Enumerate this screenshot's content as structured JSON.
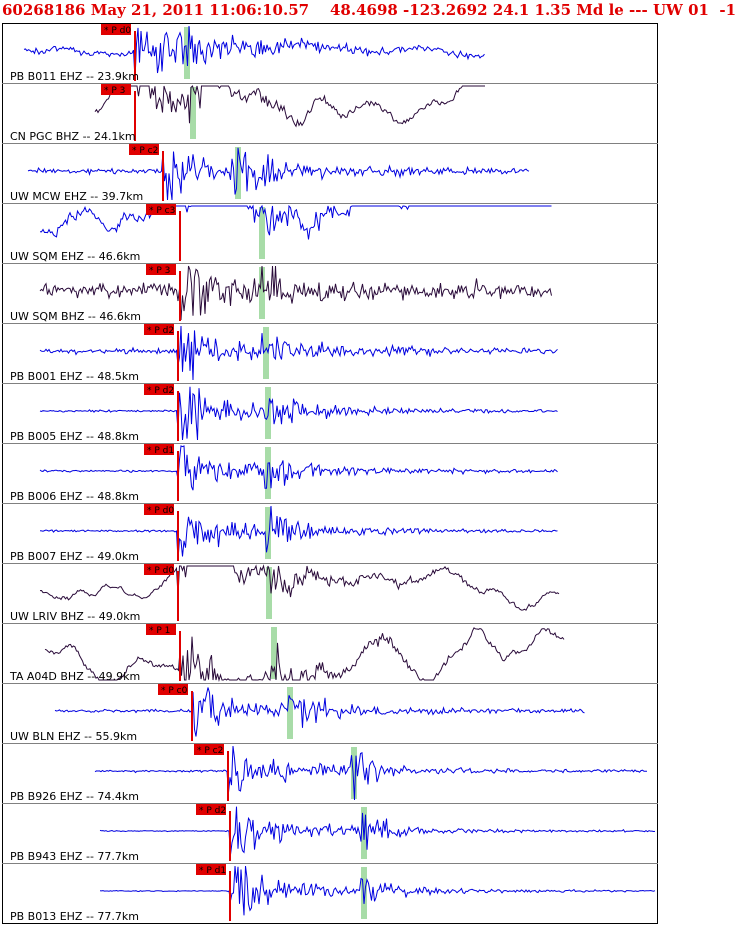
{
  "header": {
    "event_id": "60268186",
    "datetime": "May 21, 2011 11:06:10.57",
    "location": "48.4698 -123.2692 24.1 1.35 Md le --- UW 01  -1"
  },
  "chart_data": {
    "type": "line",
    "title": "",
    "xlabel": "",
    "ylabel": "",
    "colors": {
      "trace_blue": "#0000e0",
      "trace_dark": "#2a0b3a",
      "pick_red": "#e00000",
      "s_window": "#a8dca8",
      "frame": "#000000",
      "separator": "#808080"
    },
    "series": [
      {
        "name": "PB B011 EHZ -- 23.9km",
        "pick": "P d0",
        "color": "trace_blue"
      },
      {
        "name": "CN PGC BHZ -- 24.1km",
        "pick": "P 3",
        "color": "trace_dark"
      },
      {
        "name": "UW MCW EHZ -- 39.7km",
        "pick": "P c2",
        "color": "trace_blue"
      },
      {
        "name": "UW SQM EHZ -- 46.6km",
        "pick": "P c3",
        "color": "trace_blue"
      },
      {
        "name": "UW SQM BHZ -- 46.6km",
        "pick": "P 3",
        "color": "trace_dark"
      },
      {
        "name": "PB B001 EHZ -- 48.5km",
        "pick": "P d2",
        "color": "trace_blue"
      },
      {
        "name": "PB B005 EHZ -- 48.8km",
        "pick": "P d2",
        "color": "trace_blue"
      },
      {
        "name": "PB B006 EHZ -- 48.8km",
        "pick": "P d1",
        "color": "trace_blue"
      },
      {
        "name": "PB B007 EHZ -- 49.0km",
        "pick": "P d0",
        "color": "trace_blue"
      },
      {
        "name": "UW LRIV BHZ -- 49.0km",
        "pick": "P d0",
        "color": "trace_dark"
      },
      {
        "name": "TA A04D BHZ -- 49.9km",
        "pick": "P 1",
        "color": "trace_dark"
      },
      {
        "name": "UW BLN EHZ -- 55.9km",
        "pick": "P c0",
        "color": "trace_blue"
      },
      {
        "name": "PB B926 EHZ -- 74.4km",
        "pick": "P c2",
        "color": "trace_blue"
      },
      {
        "name": "PB B943 EHZ -- 77.7km",
        "pick": "P d2",
        "color": "trace_blue"
      },
      {
        "name": "PB B013 EHZ -- 77.7km",
        "pick": "P d1",
        "color": "trace_blue"
      }
    ]
  }
}
